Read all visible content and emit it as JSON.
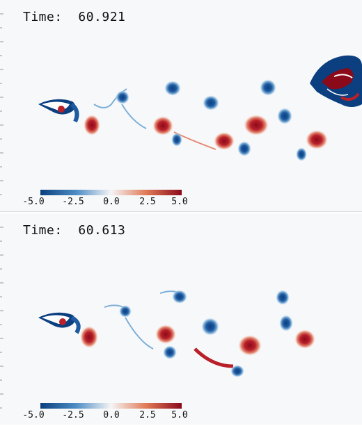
{
  "panels": [
    {
      "time_label": "Time:  60.921"
    },
    {
      "time_label": "Time:  60.613"
    }
  ],
  "colorbar": {
    "ticks": [
      "-5.0",
      "-2.5",
      "0.0",
      "2.5",
      "5.0"
    ],
    "colors": {
      "negative": "#0b3f7f",
      "mid": "#f5f5f5",
      "positive": "#8b0a1a"
    }
  }
}
